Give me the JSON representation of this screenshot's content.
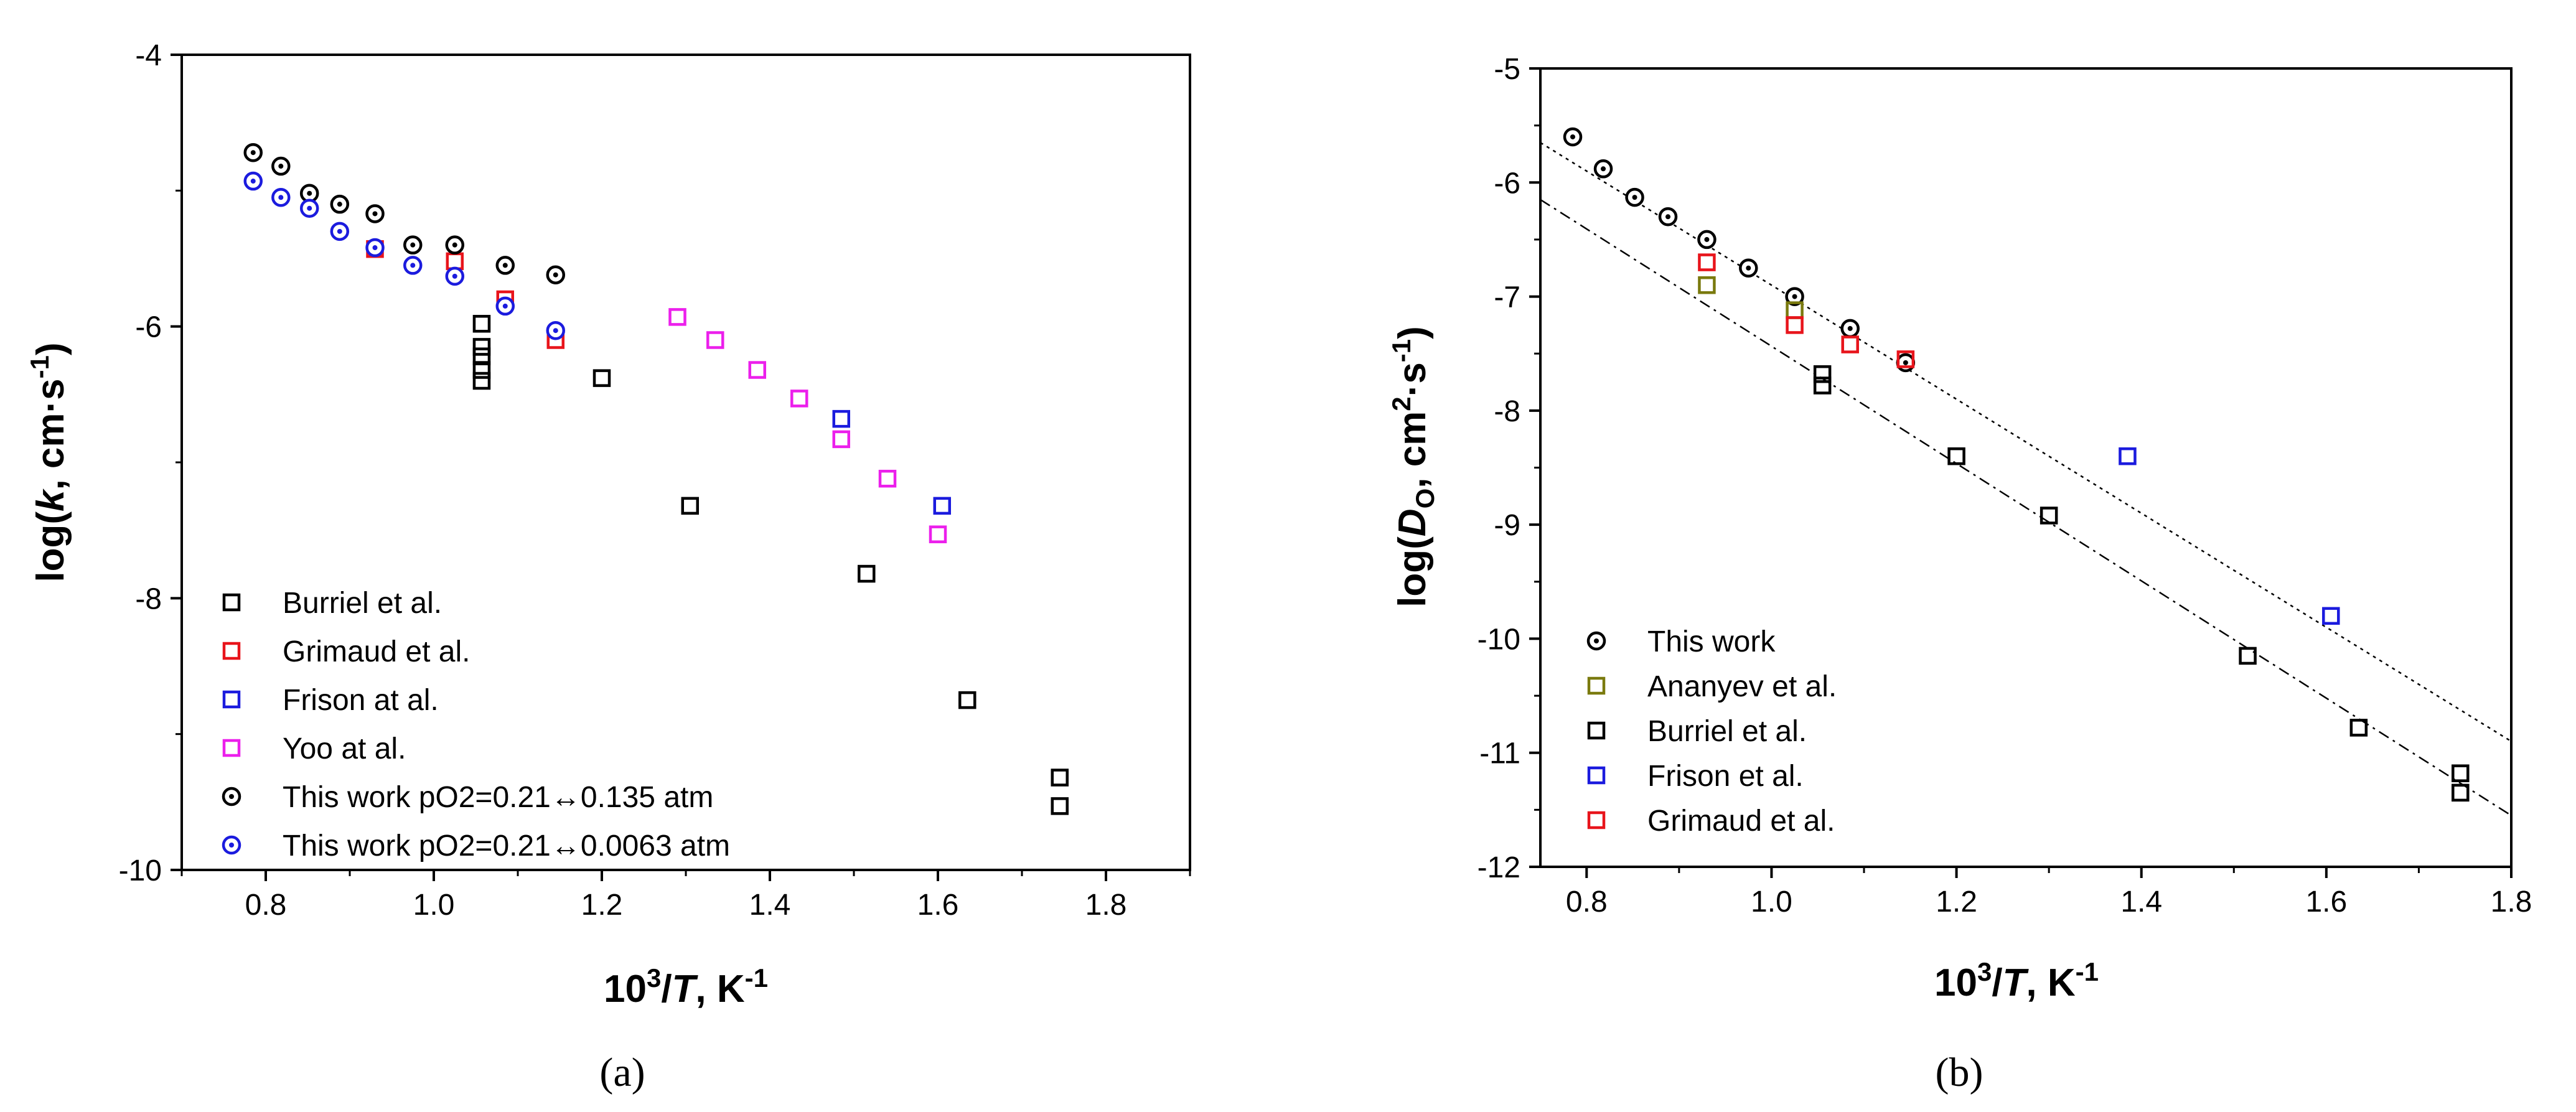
{
  "chart_data": [
    {
      "type": "scatter",
      "panel": "a",
      "caption": "(a)",
      "xlabel": {
        "prefix": "10",
        "sup": "3",
        "slash": "/",
        "var": "T",
        "unit": ", K",
        "unit_sup": "-1"
      },
      "ylabel": {
        "prefix": "log(",
        "var": "k",
        "unit": ", cm·s",
        "unit_sup": "-1",
        "suffix": ")"
      },
      "xlim": [
        0.7,
        1.9
      ],
      "ylim": [
        -10,
        -4
      ],
      "xticks": [
        0.8,
        1.0,
        1.2,
        1.4,
        1.6,
        1.8
      ],
      "xtick_labels": [
        "0.8",
        "1.0",
        "1.2",
        "1.4",
        "1.6",
        "1.8"
      ],
      "yticks": [
        -10,
        -8,
        -6,
        -4
      ],
      "ytick_labels": [
        "-10",
        "-8",
        "-6",
        "-4"
      ],
      "legend_position": "bottom-left",
      "series": [
        {
          "name": "Burriel et al.",
          "marker": "square",
          "color": "#000000",
          "x": [
            1.057,
            1.057,
            1.057,
            1.057,
            1.057,
            1.2,
            1.305,
            1.515,
            1.635,
            1.745,
            1.745
          ],
          "y": [
            -5.98,
            -6.15,
            -6.22,
            -6.32,
            -6.4,
            -6.38,
            -7.32,
            -7.82,
            -8.75,
            -9.32,
            -9.53
          ]
        },
        {
          "name": "Grimaud et al.",
          "marker": "square",
          "color": "#e8141b",
          "x": [
            0.93,
            1.025,
            1.085,
            1.145
          ],
          "y": [
            -5.43,
            -5.52,
            -5.8,
            -6.1
          ]
        },
        {
          "name": "Frison at al.",
          "marker": "square",
          "color": "#1b1bde",
          "x": [
            1.485,
            1.605
          ],
          "y": [
            -6.68,
            -7.32
          ]
        },
        {
          "name": "Yoo at al.",
          "marker": "square",
          "color": "#ec1fec",
          "x": [
            1.29,
            1.335,
            1.385,
            1.435,
            1.485,
            1.54,
            1.6
          ],
          "y": [
            -5.93,
            -6.1,
            -6.32,
            -6.53,
            -6.83,
            -7.12,
            -7.53
          ]
        },
        {
          "name": "This work pO2=0.21↔0.135 atm",
          "marker": "dotted-circle",
          "color": "#000000",
          "x": [
            0.785,
            0.818,
            0.852,
            0.888,
            0.93,
            0.975,
            1.025,
            1.085,
            1.145
          ],
          "y": [
            -4.72,
            -4.82,
            -5.02,
            -5.1,
            -5.17,
            -5.4,
            -5.4,
            -5.55,
            -5.62
          ]
        },
        {
          "name": "This work pO2=0.21↔0.0063 atm",
          "marker": "dotted-circle",
          "color": "#1b1bde",
          "x": [
            0.785,
            0.818,
            0.852,
            0.888,
            0.93,
            0.975,
            1.025,
            1.085,
            1.145
          ],
          "y": [
            -4.93,
            -5.05,
            -5.13,
            -5.3,
            -5.42,
            -5.55,
            -5.63,
            -5.85,
            -6.03
          ]
        }
      ]
    },
    {
      "type": "scatter",
      "panel": "b",
      "caption": "(b)",
      "xlabel": {
        "prefix": "10",
        "sup": "3",
        "slash": "/",
        "var": "T",
        "unit": ", K",
        "unit_sup": "-1"
      },
      "ylabel": {
        "prefix": "log(",
        "var": "D",
        "sub": "O",
        "unit": ", cm",
        "unit_sup": "2",
        "unit2": "·s",
        "unit2_sup": "-1",
        "suffix": ")"
      },
      "xlim": [
        0.75,
        1.8
      ],
      "ylim": [
        -12,
        -5
      ],
      "xticks": [
        0.8,
        1.0,
        1.2,
        1.4,
        1.6,
        1.8
      ],
      "xtick_labels": [
        "0.8",
        "1.0",
        "1.2",
        "1.4",
        "1.6",
        "1.8"
      ],
      "yticks": [
        -12,
        -11,
        -10,
        -9,
        -8,
        -7,
        -6,
        -5
      ],
      "ytick_labels": [
        "-12",
        "-11",
        "-10",
        "-9",
        "-8",
        "-7",
        "-6",
        "-5"
      ],
      "legend_position": "bottom-left",
      "fit_lines": [
        {
          "x": [
            0.75,
            1.8
          ],
          "y": [
            -5.65,
            -10.9
          ],
          "style": "dotted"
        },
        {
          "x": [
            0.75,
            1.8
          ],
          "y": [
            -6.15,
            -11.55
          ],
          "style": "dash-dot"
        }
      ],
      "series": [
        {
          "name": "This work",
          "marker": "dotted-circle",
          "color": "#000000",
          "x": [
            0.785,
            0.818,
            0.852,
            0.888,
            0.93,
            0.975,
            1.025,
            1.085,
            1.145
          ],
          "y": [
            -5.6,
            -5.88,
            -6.13,
            -6.3,
            -6.5,
            -6.75,
            -7.0,
            -7.28,
            -7.58
          ]
        },
        {
          "name": "Ananyev et al.",
          "marker": "square",
          "color": "#7a7a0e",
          "x": [
            0.93,
            1.025
          ],
          "y": [
            -6.9,
            -7.12
          ]
        },
        {
          "name": "Burriel et al.",
          "marker": "square",
          "color": "#000000",
          "x": [
            1.055,
            1.055,
            1.2,
            1.3,
            1.515,
            1.635,
            1.745,
            1.745
          ],
          "y": [
            -7.68,
            -7.78,
            -8.4,
            -8.92,
            -10.15,
            -10.78,
            -11.18,
            -11.35
          ]
        },
        {
          "name": "Frison et al.",
          "marker": "square",
          "color": "#1b1bde",
          "x": [
            1.385,
            1.605
          ],
          "y": [
            -8.4,
            -9.8
          ]
        },
        {
          "name": "Grimaud et al.",
          "marker": "square",
          "color": "#e8141b",
          "x": [
            0.93,
            1.025,
            1.085,
            1.145
          ],
          "y": [
            -6.7,
            -7.25,
            -7.42,
            -7.55
          ]
        }
      ]
    }
  ]
}
